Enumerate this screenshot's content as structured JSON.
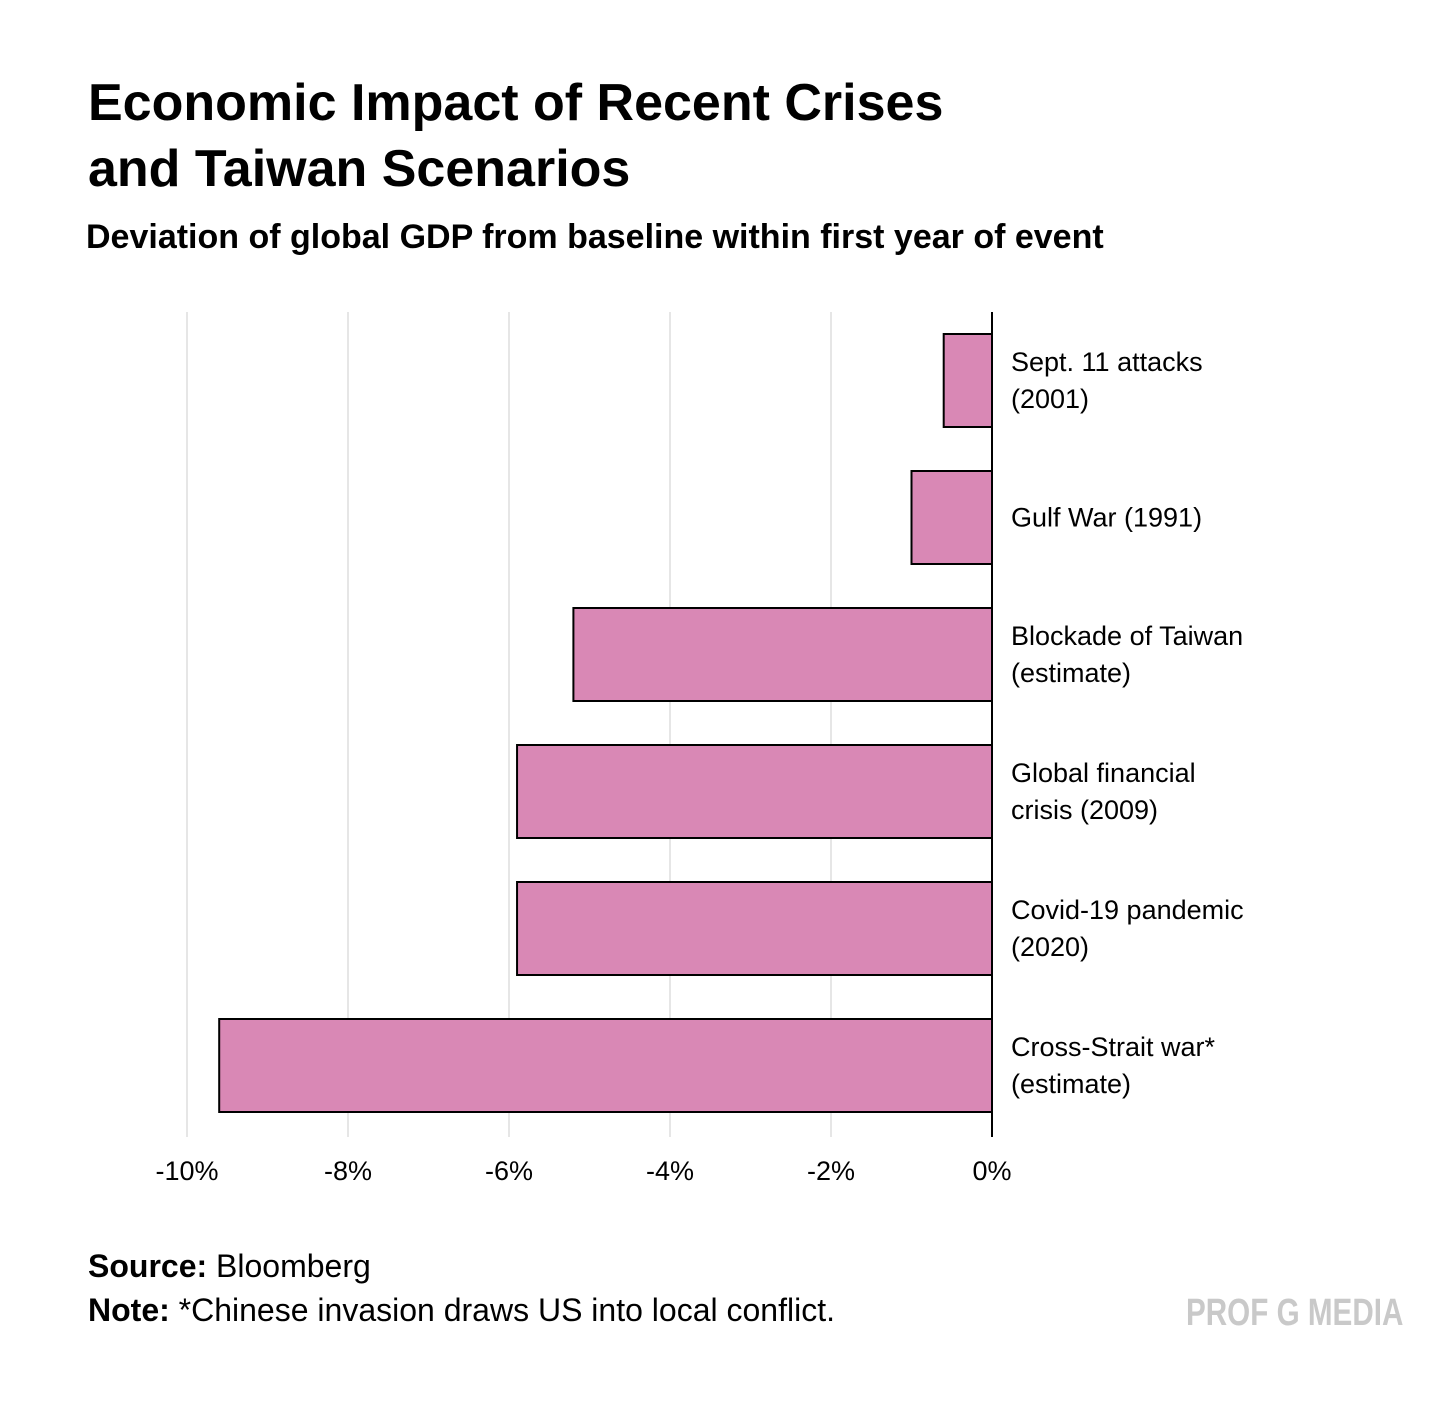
{
  "chart_data": {
    "type": "bar",
    "orientation": "horizontal",
    "title": "Economic Impact of Recent Crises and Taiwan Scenarios",
    "title_lines": [
      "Economic Impact of Recent Crises",
      "and Taiwan Scenarios"
    ],
    "subtitle": "Deviation of global GDP from baseline within first year of event",
    "categories": [
      [
        "Sept. 11 attacks",
        "(2001)"
      ],
      [
        "Gulf War (1991)"
      ],
      [
        "Blockade of Taiwan",
        "(estimate)"
      ],
      [
        "Global financial",
        "crisis (2009)"
      ],
      [
        "Covid-19 pandemic",
        "(2020)"
      ],
      [
        "Cross-Strait war*",
        "(estimate)"
      ]
    ],
    "values": [
      -0.6,
      -1.0,
      -5.2,
      -5.9,
      -5.9,
      -9.6
    ],
    "unit": "%",
    "xlim": [
      -10,
      0
    ],
    "xticks": [
      -10,
      -8,
      -6,
      -4,
      -2,
      0
    ],
    "xtick_labels": [
      "-10%",
      "-8%",
      "-6%",
      "-4%",
      "-2%",
      "0%"
    ],
    "xlabel": "",
    "ylabel": "",
    "grid": "vertical",
    "bar_color": "#d988b5",
    "legend": "none"
  },
  "footer": {
    "source_label": "Source:",
    "source_text": "Bloomberg",
    "note_label": "Note:",
    "note_text": "*Chinese invasion draws US into local conflict."
  },
  "logo": "PROF G MEDIA"
}
